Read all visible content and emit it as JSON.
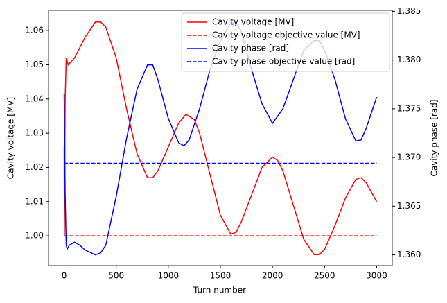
{
  "chart_data": {
    "type": "line",
    "x_label": "Turn number",
    "y_label": "Cavity voltage [MV]",
    "y2_label": "Cavity phase [rad]",
    "y_label_color": "#ff0000",
    "y2_label_color": "#0000ff",
    "legend": "upper right",
    "xlim": [
      -150,
      3150
    ],
    "xticks": [
      0,
      500,
      1000,
      1500,
      2000,
      2500,
      3000
    ],
    "ylim": [
      0.9913,
      1.0659
    ],
    "yticks": [
      {
        "value": 1.0,
        "label": "1.00"
      },
      {
        "value": 1.01,
        "label": "1.01"
      },
      {
        "value": 1.02,
        "label": "1.02"
      },
      {
        "value": 1.03,
        "label": "1.03"
      },
      {
        "value": 1.04,
        "label": "1.04"
      },
      {
        "value": 1.05,
        "label": "1.05"
      },
      {
        "value": 1.06,
        "label": "1.06"
      }
    ],
    "y2lim": [
      1.3589,
      1.3851
    ],
    "y2ticks": [
      {
        "value": 1.36,
        "label": "1.360"
      },
      {
        "value": 1.365,
        "label": "1.365"
      },
      {
        "value": 1.37,
        "label": "1.370"
      },
      {
        "value": 1.375,
        "label": "1.375"
      },
      {
        "value": 1.38,
        "label": "1.380"
      },
      {
        "value": 1.385,
        "label": "1.385"
      }
    ],
    "series": [
      {
        "name": "Cavity voltage [MV]",
        "color": "#ff0000",
        "dash": "solid",
        "x": [
          0,
          2,
          10,
          20,
          40,
          100,
          200,
          300,
          350,
          400,
          500,
          600,
          700,
          800,
          850,
          900,
          1000,
          1100,
          1170,
          1250,
          1300,
          1400,
          1500,
          1600,
          1650,
          1700,
          1800,
          1900,
          2000,
          2050,
          2100,
          2200,
          2300,
          2400,
          2450,
          2500,
          2600,
          2700,
          2800,
          2850,
          2900,
          3000
        ],
        "values": [
          1.026,
          1.0,
          1.04,
          1.052,
          1.05,
          1.052,
          1.058,
          1.0625,
          1.0625,
          1.061,
          1.052,
          1.037,
          1.024,
          1.017,
          1.017,
          1.019,
          1.026,
          1.033,
          1.0355,
          1.034,
          1.03,
          1.018,
          1.006,
          1.0005,
          1.001,
          1.004,
          1.012,
          1.02,
          1.023,
          1.022,
          1.019,
          1.009,
          0.999,
          0.9945,
          0.9945,
          0.996,
          1.003,
          1.011,
          1.0165,
          1.017,
          1.0155,
          1.01
        ]
      },
      {
        "name": "Cavity voltage objective value [MV]",
        "color": "#ff0000",
        "dash": "dashed",
        "x": [
          0,
          3000
        ],
        "values": [
          1.0,
          1.0
        ]
      },
      {
        "name": "Cavity phase [rad]",
        "color": "#0000ff",
        "dash": "solid",
        "axis": "y2",
        "x": [
          0,
          5,
          10,
          20,
          30,
          50,
          100,
          150,
          200,
          300,
          350,
          400,
          500,
          600,
          700,
          800,
          850,
          900,
          1000,
          1100,
          1150,
          1200,
          1300,
          1400,
          1500,
          1600,
          1650,
          1700,
          1800,
          1900,
          2000,
          2100,
          2200,
          2300,
          2400,
          2450,
          2500,
          2600,
          2700,
          2800,
          2850,
          2900,
          3000
        ],
        "values": [
          1.3765,
          1.371,
          1.366,
          1.361,
          1.3606,
          1.361,
          1.3613,
          1.361,
          1.3605,
          1.36,
          1.3602,
          1.361,
          1.366,
          1.372,
          1.377,
          1.3795,
          1.3795,
          1.378,
          1.374,
          1.3715,
          1.3712,
          1.3718,
          1.375,
          1.379,
          1.382,
          1.3838,
          1.3838,
          1.383,
          1.379,
          1.3755,
          1.3735,
          1.375,
          1.378,
          1.381,
          1.382,
          1.382,
          1.381,
          1.378,
          1.374,
          1.3717,
          1.3718,
          1.373,
          1.3762
        ]
      },
      {
        "name": "Cavity phase objective value [rad]",
        "color": "#0000ff",
        "dash": "dashed",
        "axis": "y2",
        "x": [
          0,
          3000
        ],
        "values": [
          1.3694,
          1.3694
        ]
      }
    ]
  }
}
